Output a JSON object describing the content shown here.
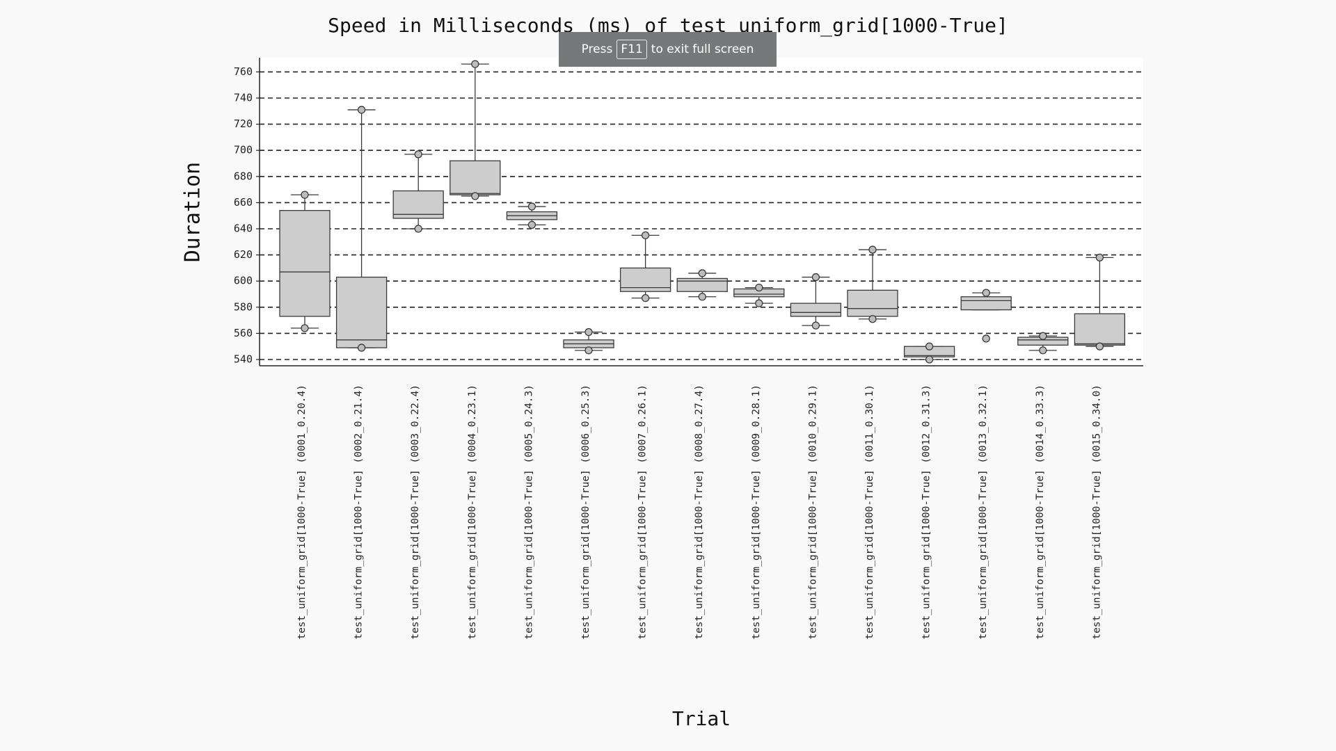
{
  "chart_data": {
    "type": "box",
    "title": "Speed in Milliseconds (ms) of test_uniform_grid[1000-True]",
    "xlabel": "Trial",
    "ylabel": "Duration",
    "ylim": [
      535,
      765
    ],
    "yticks": [
      540,
      560,
      580,
      600,
      620,
      640,
      660,
      680,
      700,
      720,
      740,
      760
    ],
    "grid": "horizontal dashed",
    "categories": [
      "test_uniform_grid[1000-True] (0001_0.20.4)",
      "test_uniform_grid[1000-True] (0002_0.21.4)",
      "test_uniform_grid[1000-True] (0003_0.22.4)",
      "test_uniform_grid[1000-True] (0004_0.23.1)",
      "test_uniform_grid[1000-True] (0005_0.24.3)",
      "test_uniform_grid[1000-True] (0006_0.25.3)",
      "test_uniform_grid[1000-True] (0007_0.26.1)",
      "test_uniform_grid[1000-True] (0008_0.27.4)",
      "test_uniform_grid[1000-True] (0009_0.28.1)",
      "test_uniform_grid[1000-True] (0010_0.29.1)",
      "test_uniform_grid[1000-True] (0011_0.30.1)",
      "test_uniform_grid[1000-True] (0012_0.31.3)",
      "test_uniform_grid[1000-True] (0013_0.32.1)",
      "test_uniform_grid[1000-True] (0014_0.33.3)",
      "test_uniform_grid[1000-True] (0015_0.34.0)"
    ],
    "boxes": [
      {
        "whisker_low": 564,
        "q1": 573,
        "median": 607,
        "q3": 654,
        "whisker_high": 666,
        "points": [
          564,
          666
        ]
      },
      {
        "whisker_low": 549,
        "q1": 549,
        "median": 555,
        "q3": 603,
        "whisker_high": 731,
        "points": [
          549,
          731
        ]
      },
      {
        "whisker_low": 640,
        "q1": 648,
        "median": 651,
        "q3": 669,
        "whisker_high": 697,
        "points": [
          640,
          697
        ]
      },
      {
        "whisker_low": 665,
        "q1": 666,
        "median": 667,
        "q3": 692,
        "whisker_high": 766,
        "points": [
          665,
          766
        ]
      },
      {
        "whisker_low": 643,
        "q1": 647,
        "median": 650,
        "q3": 653,
        "whisker_high": 657,
        "points": [
          643,
          657
        ]
      },
      {
        "whisker_low": 547,
        "q1": 549,
        "median": 552,
        "q3": 555,
        "whisker_high": 561,
        "points": [
          547,
          561
        ]
      },
      {
        "whisker_low": 587,
        "q1": 592,
        "median": 595,
        "q3": 610,
        "whisker_high": 635,
        "points": [
          587,
          635
        ]
      },
      {
        "whisker_low": 588,
        "q1": 592,
        "median": 600,
        "q3": 602,
        "whisker_high": 606,
        "points": [
          588,
          606
        ]
      },
      {
        "whisker_low": 583,
        "q1": 588,
        "median": 590,
        "q3": 594,
        "whisker_high": 595,
        "points": [
          583,
          595
        ]
      },
      {
        "whisker_low": 566,
        "q1": 573,
        "median": 576,
        "q3": 583,
        "whisker_high": 603,
        "points": [
          566,
          603
        ]
      },
      {
        "whisker_low": 571,
        "q1": 573,
        "median": 579,
        "q3": 593,
        "whisker_high": 624,
        "points": [
          571,
          624
        ]
      },
      {
        "whisker_low": 540,
        "q1": 542,
        "median": 543,
        "q3": 550,
        "whisker_high": 550,
        "points": [
          540,
          550
        ]
      },
      {
        "whisker_low": 578,
        "q1": 578,
        "median": 585,
        "q3": 588,
        "whisker_high": 591,
        "points": [
          591,
          556
        ]
      },
      {
        "whisker_low": 547,
        "q1": 551,
        "median": 555,
        "q3": 557,
        "whisker_high": 558,
        "points": [
          547,
          558
        ]
      },
      {
        "whisker_low": 550,
        "q1": 551,
        "median": 552,
        "q3": 575,
        "whisker_high": 618,
        "points": [
          550,
          618
        ]
      }
    ]
  },
  "overlay": {
    "toast_before": "Press",
    "toast_key": "F11",
    "toast_after": "to exit full screen"
  },
  "colors": {
    "box_fill": "#cdcdcd",
    "stroke": "#3a3a3a",
    "grid": "#222222",
    "toast_bg": "#77787a"
  }
}
